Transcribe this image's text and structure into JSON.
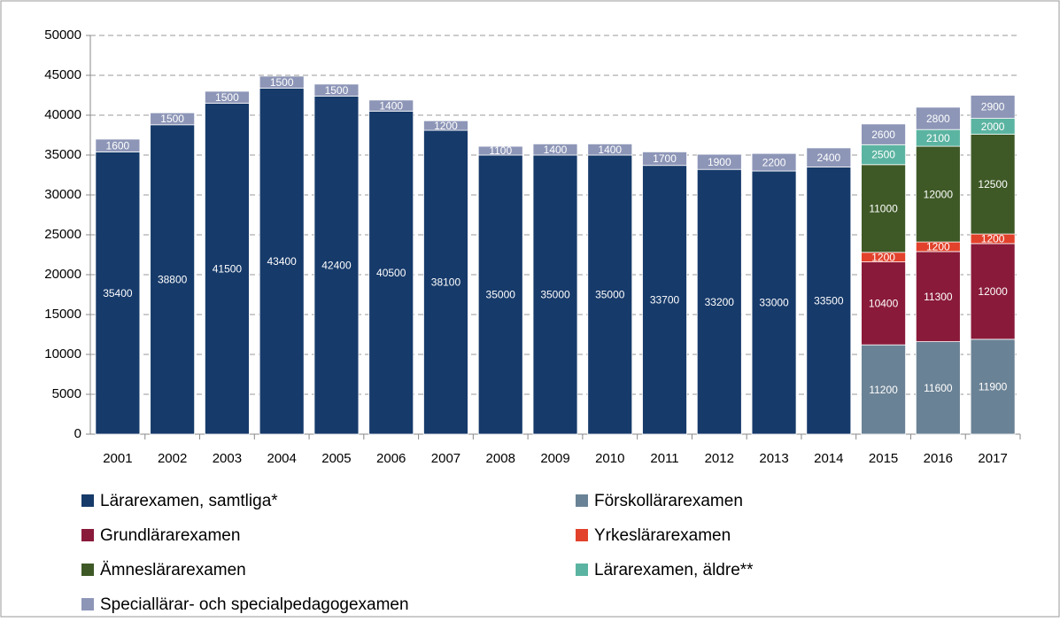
{
  "chart_data": {
    "type": "stacked_bar",
    "categories": [
      "2001",
      "2002",
      "2003",
      "2004",
      "2005",
      "2006",
      "2007",
      "2008",
      "2009",
      "2010",
      "2011",
      "2012",
      "2013",
      "2014",
      "2015",
      "2016",
      "2017"
    ],
    "series": [
      {
        "name": "Lärarexamen, samtliga*",
        "color": "#163a6a",
        "values": [
          35400,
          38800,
          41500,
          43400,
          42400,
          40500,
          38100,
          35000,
          35000,
          35000,
          33700,
          33200,
          33000,
          33500,
          null,
          null,
          null
        ]
      },
      {
        "name": "Förskollärarexamen",
        "color": "#6a8295",
        "values": [
          null,
          null,
          null,
          null,
          null,
          null,
          null,
          null,
          null,
          null,
          null,
          null,
          null,
          null,
          11200,
          11600,
          11900
        ]
      },
      {
        "name": "Grundlärarexamen",
        "color": "#8a1a3a",
        "values": [
          null,
          null,
          null,
          null,
          null,
          null,
          null,
          null,
          null,
          null,
          null,
          null,
          null,
          null,
          10400,
          11300,
          12000
        ]
      },
      {
        "name": "Yrkeslärarexamen",
        "color": "#e2412b",
        "values": [
          null,
          null,
          null,
          null,
          null,
          null,
          null,
          null,
          null,
          null,
          null,
          null,
          null,
          null,
          1200,
          1200,
          1200
        ]
      },
      {
        "name": "Ämneslärarexamen",
        "color": "#3e5926",
        "values": [
          null,
          null,
          null,
          null,
          null,
          null,
          null,
          null,
          null,
          null,
          null,
          null,
          null,
          null,
          11000,
          12000,
          12500
        ]
      },
      {
        "name": "Lärarexamen, äldre**",
        "color": "#5bb4a1",
        "values": [
          null,
          null,
          null,
          null,
          null,
          null,
          null,
          null,
          null,
          null,
          null,
          null,
          null,
          null,
          2500,
          2100,
          2000
        ]
      },
      {
        "name": "Speciallärar- och specialpedagogexamen",
        "color": "#8d96b7",
        "values": [
          1600,
          1500,
          1500,
          1500,
          1500,
          1400,
          1200,
          1100,
          1400,
          1400,
          1700,
          1900,
          2200,
          2400,
          2600,
          2800,
          2900
        ]
      }
    ],
    "ylim": [
      0,
      50000
    ],
    "yticks": [
      0,
      5000,
      10000,
      15000,
      20000,
      25000,
      30000,
      35000,
      40000,
      45000,
      50000
    ],
    "grid": true
  }
}
